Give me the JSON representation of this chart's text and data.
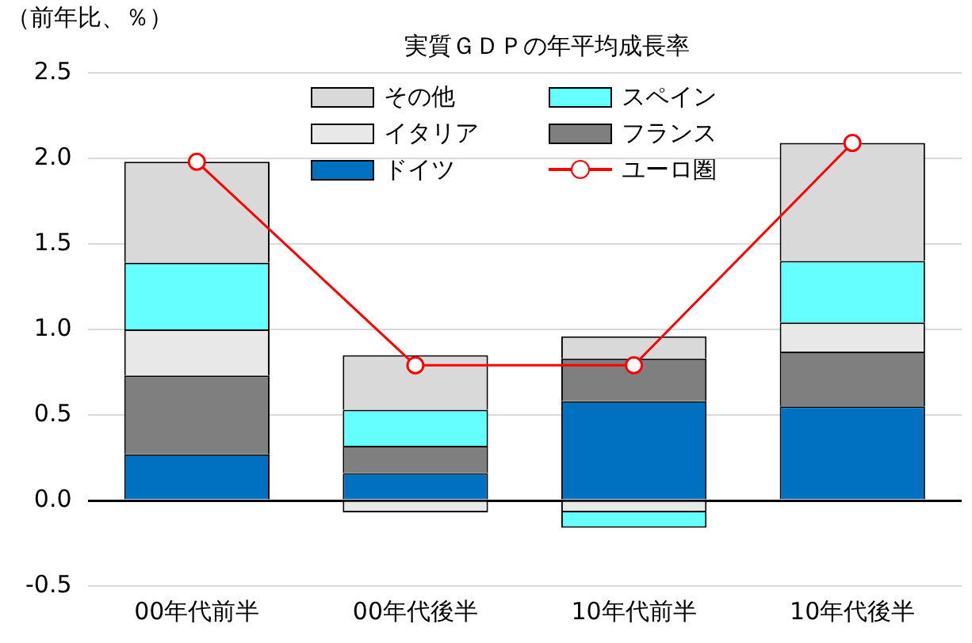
{
  "chart_data": {
    "type": "bar",
    "title": "実質ＧＤＰの年平均成長率",
    "ylabel": "（前年比、％）",
    "stacked": true,
    "categories": [
      "00年代前半",
      "00年代後半",
      "10年代前半",
      "10年代後半"
    ],
    "series": [
      {
        "name": "ドイツ",
        "color": "#0070c0",
        "values": [
          0.27,
          0.16,
          0.58,
          0.55
        ]
      },
      {
        "name": "フランス",
        "color": "#7f7f7f",
        "values": [
          0.46,
          0.16,
          0.25,
          0.32
        ]
      },
      {
        "name": "イタリア",
        "color": "#e8e8e8",
        "values": [
          0.27,
          -0.07,
          -0.07,
          0.17
        ]
      },
      {
        "name": "スペイン",
        "color": "#66ffff",
        "values": [
          0.39,
          0.21,
          -0.09,
          0.36
        ]
      },
      {
        "name": "その他",
        "color": "#d9d9d9",
        "values": [
          0.59,
          0.32,
          0.13,
          0.69
        ]
      },
      {
        "name": "ユーロ圏",
        "type": "line",
        "color": "#ff0000",
        "values": [
          1.98,
          0.79,
          0.79,
          2.09
        ]
      }
    ],
    "ylim": [
      -0.5,
      2.5
    ],
    "yticks": [
      {
        "value": -0.5,
        "label": "-0.5"
      },
      {
        "value": 0,
        "label": "0.0"
      },
      {
        "value": 0.5,
        "label": "0.5"
      },
      {
        "value": 1,
        "label": "1.0"
      },
      {
        "value": 1.5,
        "label": "1.5"
      },
      {
        "value": 2,
        "label": "2.0"
      },
      2.5
    ],
    "grid": "y",
    "legend": "top",
    "marker": "circle"
  }
}
